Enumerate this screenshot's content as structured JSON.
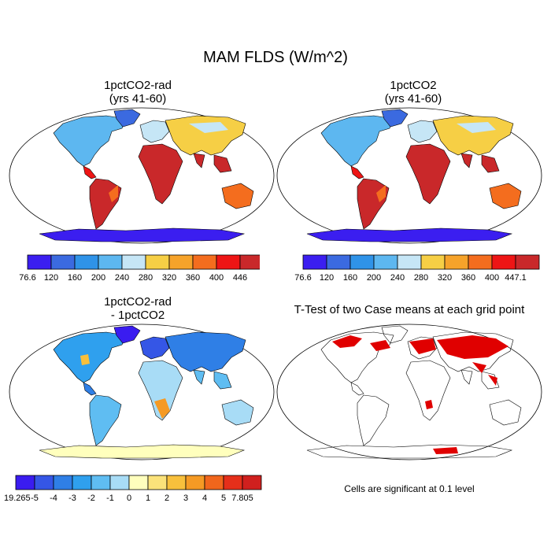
{
  "title": "MAM FLDS (W/m^2)",
  "panels": [
    {
      "title_line1": "1pctCO2-rad",
      "title_line2": "(yrs 41-60)",
      "type": "absolute"
    },
    {
      "title_line1": "1pctCO2",
      "title_line2": "(yrs 41-60)",
      "type": "absolute"
    },
    {
      "title_line1": "1pctCO2-rad",
      "title_line2": "- 1pctCO2",
      "type": "difference"
    },
    {
      "title_line1": "T-Test of two Case means at each grid point",
      "title_line2": "",
      "type": "significance"
    }
  ],
  "colorbars": {
    "absolute_left": {
      "labels": [
        "76.6",
        "120",
        "160",
        "200",
        "240",
        "280",
        "320",
        "360",
        "400",
        "446"
      ],
      "colors": [
        "#3b1ef0",
        "#3b6ae0",
        "#2f93e8",
        "#5db7f0",
        "#c6e6f6",
        "#f6cf45",
        "#f6a32a",
        "#f46d1e",
        "#ee1515",
        "#c9282a"
      ]
    },
    "absolute_right": {
      "labels": [
        "76.6",
        "120",
        "160",
        "200",
        "240",
        "280",
        "320",
        "360",
        "400",
        "447.1"
      ],
      "colors": [
        "#3b1ef0",
        "#3b6ae0",
        "#2f93e8",
        "#5db7f0",
        "#c6e6f6",
        "#f6cf45",
        "#f6a32a",
        "#f46d1e",
        "#ee1515",
        "#c9282a"
      ]
    },
    "difference": {
      "labels": [
        "-19.265",
        "-5",
        "-4",
        "-3",
        "-2",
        "-1",
        "0",
        "1",
        "2",
        "3",
        "4",
        "5",
        "7.805"
      ],
      "colors": [
        "#3a1cf0",
        "#3556e6",
        "#2f7fe6",
        "#2fa0ee",
        "#5fbdf2",
        "#a8dcf6",
        "#ffffbd",
        "#fbe27a",
        "#f8c03c",
        "#f59a24",
        "#f1661c",
        "#e52f1a",
        "#d0201e"
      ]
    }
  },
  "significance_note": "Cells are significant at 0.1 level",
  "significance_color": "#e00000"
}
